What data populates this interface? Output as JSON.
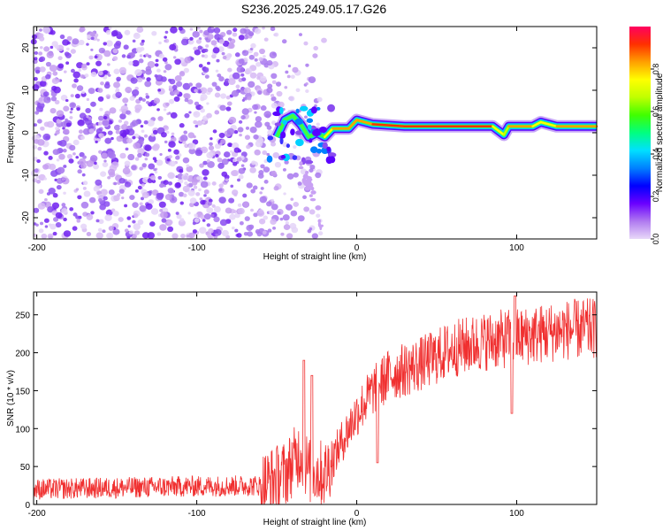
{
  "title": "S236.2025.249.05.17.G26",
  "chart_data": [
    {
      "type": "heatmap",
      "name": "spectrogram",
      "title": "S236.2025.249.05.17.G26",
      "xlabel": "Height of straight line (km)",
      "ylabel": "Frequency (Hz)",
      "xlim": [
        -202,
        150
      ],
      "ylim": [
        -25,
        25
      ],
      "xticks": [
        -200,
        -100,
        0,
        100
      ],
      "yticks": [
        -20,
        -10,
        0,
        10,
        20
      ],
      "colorbar": {
        "label": "Normalized spectral amplitude",
        "range": [
          0,
          1
        ],
        "ticks": [
          0.0,
          0.2,
          0.4,
          0.6,
          0.8
        ],
        "colors": [
          "#e8d8f8",
          "#b07af0",
          "#6a00ff",
          "#0000ff",
          "#0080ff",
          "#00e0ff",
          "#00ff80",
          "#40ff00",
          "#c0ff00",
          "#ffff00",
          "#ffa000",
          "#ff3000",
          "#ff0060"
        ]
      },
      "noise_region_km": [
        -202,
        -50
      ],
      "signal_track": [
        {
          "x": -50,
          "f": -1,
          "a": 0.3
        },
        {
          "x": -45,
          "f": 3,
          "a": 0.35
        },
        {
          "x": -40,
          "f": 4,
          "a": 0.3
        },
        {
          "x": -35,
          "f": 2,
          "a": 0.45
        },
        {
          "x": -30,
          "f": -1,
          "a": 0.5
        },
        {
          "x": -25,
          "f": 0,
          "a": 0.6
        },
        {
          "x": -20,
          "f": -1,
          "a": 0.7
        },
        {
          "x": -15,
          "f": 1,
          "a": 0.8
        },
        {
          "x": -5,
          "f": 1,
          "a": 0.85
        },
        {
          "x": 0,
          "f": 3,
          "a": 0.75
        },
        {
          "x": 10,
          "f": 2,
          "a": 0.9
        },
        {
          "x": 30,
          "f": 1.5,
          "a": 0.95
        },
        {
          "x": 60,
          "f": 1.5,
          "a": 0.9
        },
        {
          "x": 85,
          "f": 1.5,
          "a": 0.85
        },
        {
          "x": 92,
          "f": -0.5,
          "a": 0.6
        },
        {
          "x": 95,
          "f": 1.5,
          "a": 0.8
        },
        {
          "x": 110,
          "f": 1.5,
          "a": 0.8
        },
        {
          "x": 115,
          "f": 2.5,
          "a": 0.75
        },
        {
          "x": 125,
          "f": 1.5,
          "a": 0.8
        },
        {
          "x": 150,
          "f": 1.5,
          "a": 0.8
        }
      ]
    },
    {
      "type": "line",
      "name": "snr",
      "xlabel": "Height of straight line (km)",
      "ylabel": "SNR (10 * v/v)",
      "xlim": [
        -202,
        150
      ],
      "ylim": [
        0,
        280
      ],
      "xticks": [
        -200,
        -100,
        0,
        100
      ],
      "yticks": [
        0,
        50,
        100,
        150,
        200,
        250
      ],
      "color": "#f03030",
      "trend": [
        {
          "x": -202,
          "y": 20
        },
        {
          "x": -150,
          "y": 22
        },
        {
          "x": -100,
          "y": 24
        },
        {
          "x": -60,
          "y": 25
        },
        {
          "x": -45,
          "y": 40
        },
        {
          "x": -35,
          "y": 70
        },
        {
          "x": -30,
          "y": 45
        },
        {
          "x": -20,
          "y": 40
        },
        {
          "x": -10,
          "y": 80
        },
        {
          "x": 0,
          "y": 120
        },
        {
          "x": 10,
          "y": 150
        },
        {
          "x": 20,
          "y": 170
        },
        {
          "x": 40,
          "y": 185
        },
        {
          "x": 60,
          "y": 205
        },
        {
          "x": 80,
          "y": 215
        },
        {
          "x": 100,
          "y": 220
        },
        {
          "x": 130,
          "y": 230
        },
        {
          "x": 150,
          "y": 232
        }
      ],
      "spikes": [
        {
          "x": -33,
          "y": 190
        },
        {
          "x": -28,
          "y": 170
        },
        {
          "x": 13,
          "y": 55
        },
        {
          "x": 97,
          "y": 120
        },
        {
          "x": 99,
          "y": 275
        }
      ]
    }
  ]
}
